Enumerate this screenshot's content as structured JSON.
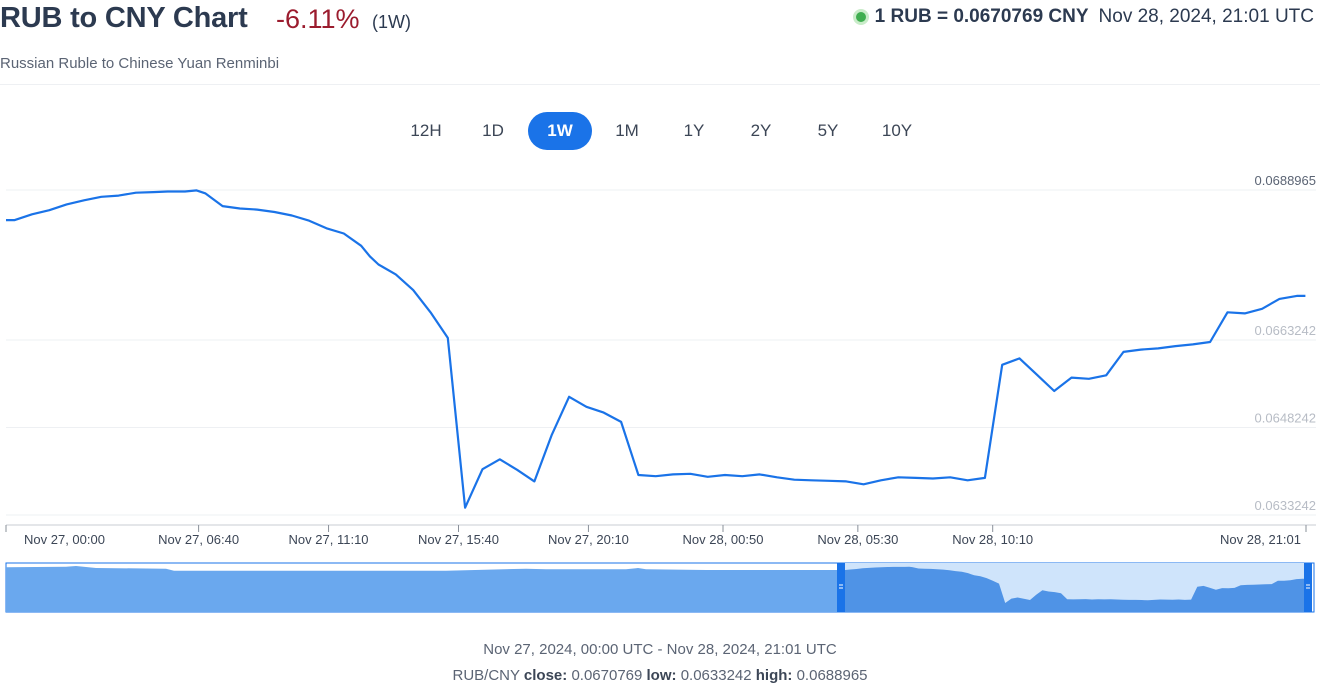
{
  "header": {
    "title": "RUB to CNY Chart",
    "change": "-6.11%",
    "period": "(1W)",
    "subtitle": "Russian Ruble to Chinese Yuan Renminbi",
    "rate": "1 RUB = 0.0670769 CNY",
    "timestamp": "Nov 28, 2024, 21:01 UTC"
  },
  "colors": {
    "accent": "#1a73e8",
    "negative": "#9b1c2e",
    "live": "#3fae50"
  },
  "tabs": [
    {
      "label": "12H",
      "active": false
    },
    {
      "label": "1D",
      "active": false
    },
    {
      "label": "1W",
      "active": true
    },
    {
      "label": "1M",
      "active": false
    },
    {
      "label": "1Y",
      "active": false
    },
    {
      "label": "2Y",
      "active": false
    },
    {
      "label": "5Y",
      "active": false
    },
    {
      "label": "10Y",
      "active": false
    }
  ],
  "footer": {
    "range": "Nov 27, 2024, 00:00 UTC - Nov 28, 2024, 21:01 UTC",
    "pair": "RUB/CNY",
    "close_label": "close:",
    "close": "0.0670769",
    "low_label": "low:",
    "low": "0.0633242",
    "high_label": "high:",
    "high": "0.0688965"
  },
  "chart_data": {
    "type": "line",
    "series": [
      {
        "x": [
          0,
          0.3,
          0.9,
          1.5,
          2.1,
          2.7,
          3.3,
          3.9,
          4.5,
          5.1,
          5.6,
          6.2,
          6.6,
          6.9,
          7.5,
          8.1,
          8.7,
          9.3,
          9.9,
          10.5,
          11.1,
          11.7,
          12.3,
          12.6,
          12.9,
          13.5,
          14.1,
          14.7,
          15.3,
          15.9,
          16.5,
          17.1,
          17.7,
          18.3,
          18.9,
          19.5,
          20.1,
          20.7,
          21.3,
          21.9,
          22.5,
          23.1,
          23.7,
          24.3,
          24.9,
          25.5,
          26.1,
          26.7,
          27.3,
          27.9,
          28.5,
          29.1,
          29.7,
          30.3,
          30.9,
          31.5,
          32.1,
          32.7,
          33.3,
          33.9,
          34.5,
          35.1,
          35.7,
          36.3,
          36.9,
          37.5,
          38.1,
          38.7,
          39.3,
          39.9,
          40.5,
          41.1,
          41.7,
          42.3,
          42.9,
          43.5,
          44.1,
          44.7,
          45.0
        ],
        "y": [
          0.06838,
          0.06838,
          0.06848,
          0.06855,
          0.06865,
          0.06872,
          0.06878,
          0.0688,
          0.06885,
          0.06886,
          0.06887,
          0.06887,
          0.06889,
          0.06884,
          0.06862,
          0.06858,
          0.06856,
          0.06852,
          0.06846,
          0.06837,
          0.06824,
          0.06815,
          0.06794,
          0.06776,
          0.06762,
          0.06745,
          0.06718,
          0.0668,
          0.06636,
          0.06345,
          0.06411,
          0.06428,
          0.0641,
          0.0639,
          0.0647,
          0.06535,
          0.06518,
          0.06508,
          0.06492,
          0.06401,
          0.06399,
          0.06402,
          0.06403,
          0.06398,
          0.06401,
          0.06399,
          0.06402,
          0.06397,
          0.06393,
          0.06392,
          0.06391,
          0.0639,
          0.06385,
          0.06392,
          0.06397,
          0.06396,
          0.06395,
          0.06397,
          0.06392,
          0.06396,
          0.0659,
          0.06601,
          0.06573,
          0.06545,
          0.06568,
          0.06566,
          0.06572,
          0.06612,
          0.06616,
          0.06618,
          0.06622,
          0.06625,
          0.06629,
          0.0668,
          0.06678,
          0.06686,
          0.06703,
          0.06708,
          0.06708
        ]
      }
    ],
    "x_ticks": [
      "Nov 27, 00:00",
      "Nov 27, 06:40",
      "Nov 27, 11:10",
      "Nov 27, 15:40",
      "Nov 27, 20:10",
      "Nov 28, 00:50",
      "Nov 28, 05:30",
      "Nov 28, 10:10",
      "Nov 28, 21:01"
    ],
    "x_tick_positions": [
      0,
      6.67,
      11.17,
      15.67,
      20.17,
      24.83,
      29.5,
      34.17,
      45.02
    ],
    "y_ticks": [
      "0.0688965",
      "0.0663242",
      "0.0648242",
      "0.0633242"
    ],
    "y_tick_values": [
      0.0688965,
      0.0663242,
      0.0648242,
      0.0633242
    ],
    "ylim": [
      0.0633242,
      0.0688965
    ],
    "xlim": [
      0,
      45.02
    ],
    "grid": true,
    "line_color": "#1a73e8"
  }
}
